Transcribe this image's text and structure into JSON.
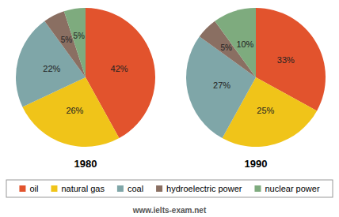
{
  "chart_data": [
    {
      "type": "pie",
      "title": "1980",
      "categories": [
        "oil",
        "natural gas",
        "coal",
        "hydroelectric power",
        "nuclear power"
      ],
      "values": [
        42,
        26,
        22,
        5,
        5
      ],
      "value_labels": [
        "42%",
        "26%",
        "22%",
        "5%",
        "5%"
      ],
      "colors": [
        "#e2532d",
        "#f0c419",
        "#7fa6a8",
        "#8a6f62",
        "#7eab7e"
      ],
      "data_labels": true,
      "legend": "bottom"
    },
    {
      "type": "pie",
      "title": "1990",
      "categories": [
        "oil",
        "natural gas",
        "coal",
        "hydroelectric power",
        "nuclear power"
      ],
      "values": [
        33,
        25,
        27,
        5,
        10
      ],
      "value_labels": [
        "33%",
        "25%",
        "27%",
        "5%",
        "10%"
      ],
      "colors": [
        "#e2532d",
        "#f0c419",
        "#7fa6a8",
        "#8a6f62",
        "#7eab7e"
      ],
      "data_labels": true,
      "annotations": [
        "www.ielts-exam.net"
      ]
    }
  ]
}
